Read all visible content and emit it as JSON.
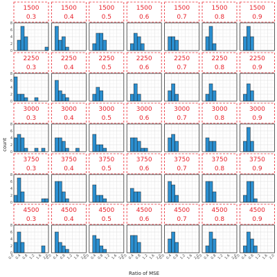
{
  "chart_data": {
    "type": "bar",
    "xlabel": "Ratio of MSE",
    "ylabel": "count",
    "xlim": [
      0,
      2.0
    ],
    "ylim": [
      0,
      8
    ],
    "x_ticks": [
      "0.0",
      "0.4",
      "0.8",
      "1.2",
      "1.6",
      "2.0"
    ],
    "y_ticks": [
      "0",
      "2",
      "4",
      "6",
      "8"
    ],
    "grid": true,
    "bin_width": 0.2,
    "bar_color": "#2b8fd0",
    "strip_color": "#e8222b",
    "rows": [
      "1500",
      "2250",
      "3000",
      "3750",
      "4500"
    ],
    "cols": [
      "0.3",
      "0.4",
      "0.5",
      "0.6",
      "0.7",
      "0.8",
      "0.9"
    ],
    "panels": [
      [
        {
          "bins": [
            0.2,
            0.4,
            0.6,
            1.8
          ],
          "counts": [
            3,
            7,
            4,
            1
          ]
        },
        {
          "bins": [
            0.2,
            0.4,
            0.6,
            0.8
          ],
          "counts": [
            7,
            3,
            4,
            1
          ]
        },
        {
          "bins": [
            0.2,
            0.4,
            0.6,
            0.8
          ],
          "counts": [
            2,
            5,
            5,
            3
          ]
        },
        {
          "bins": [
            0.2,
            0.4,
            0.6,
            0.8
          ],
          "counts": [
            2,
            5,
            4,
            2
          ]
        },
        {
          "bins": [
            0.2,
            0.4,
            0.6
          ],
          "counts": [
            4,
            4,
            3
          ]
        },
        {
          "bins": [
            0.2,
            0.4,
            0.6
          ],
          "counts": [
            4,
            7,
            2
          ]
        },
        {
          "bins": [
            0.2,
            0.4,
            0.6
          ],
          "counts": [
            4,
            7,
            4
          ]
        }
      ],
      [
        {
          "bins": [
            0.0,
            0.2,
            0.4,
            0.6,
            1.2
          ],
          "counts": [
            7,
            2,
            2,
            1,
            1
          ]
        },
        {
          "bins": [
            0.2,
            0.4,
            0.6,
            0.8
          ],
          "counts": [
            6,
            3,
            2,
            1
          ]
        },
        {
          "bins": [
            0.2,
            0.4,
            0.6
          ],
          "counts": [
            2,
            4,
            3
          ]
        },
        {
          "bins": [
            0.2,
            0.4,
            0.6
          ],
          "counts": [
            2,
            5,
            2
          ]
        },
        {
          "bins": [
            0.2,
            0.4,
            0.6
          ],
          "counts": [
            3,
            5,
            2
          ]
        },
        {
          "bins": [
            0.2,
            0.4,
            0.6
          ],
          "counts": [
            2,
            5,
            3
          ]
        },
        {
          "bins": [
            0.2,
            0.4,
            0.6
          ],
          "counts": [
            2,
            5,
            3
          ]
        }
      ],
      [
        {
          "bins": [
            0.0,
            0.2,
            0.4,
            0.6,
            1.2,
            1.6
          ],
          "counts": [
            4,
            5,
            4,
            1,
            1,
            1
          ]
        },
        {
          "bins": [
            0.2,
            0.4,
            0.6,
            0.8,
            1.4
          ],
          "counts": [
            4,
            4,
            3,
            1,
            1
          ]
        },
        {
          "bins": [
            0.2,
            0.4,
            0.6,
            0.8
          ],
          "counts": [
            5,
            2,
            2,
            1
          ]
        },
        {
          "bins": [
            0.2,
            0.4,
            0.6,
            0.8,
            1.0
          ],
          "counts": [
            4,
            4,
            3,
            1,
            1
          ]
        },
        {
          "bins": [
            0.2,
            0.4,
            0.6
          ],
          "counts": [
            4,
            5,
            3
          ]
        },
        {
          "bins": [
            0.2,
            0.4,
            0.6
          ],
          "counts": [
            4,
            3,
            3
          ]
        },
        {
          "bins": [
            0.2,
            0.4,
            0.6
          ],
          "counts": [
            3,
            7,
            3
          ]
        }
      ],
      [
        {
          "bins": [
            0.0,
            0.2,
            0.4,
            1.6,
            1.8
          ],
          "counts": [
            2,
            7,
            3,
            1,
            1
          ]
        },
        {
          "bins": [
            0.2,
            0.4,
            0.6,
            0.8
          ],
          "counts": [
            6,
            6,
            3,
            1
          ]
        },
        {
          "bins": [
            0.2,
            0.4,
            0.6,
            0.8
          ],
          "counts": [
            5,
            2,
            2,
            1
          ]
        },
        {
          "bins": [
            0.2,
            0.4,
            0.6
          ],
          "counts": [
            4,
            3,
            3
          ]
        },
        {
          "bins": [
            0.2,
            0.4,
            0.6
          ],
          "counts": [
            6,
            5,
            2
          ]
        },
        {
          "bins": [
            0.2,
            0.4,
            0.6
          ],
          "counts": [
            6,
            6,
            3
          ]
        },
        {
          "bins": [
            0.2,
            0.4,
            0.6,
            0.8
          ],
          "counts": [
            2,
            6,
            6,
            1
          ]
        }
      ],
      [
        {
          "bins": [
            0.0,
            0.2,
            0.4,
            1.6
          ],
          "counts": [
            3,
            6,
            3,
            2
          ]
        },
        {
          "bins": [
            0.2,
            0.4,
            0.6,
            0.8
          ],
          "counts": [
            6,
            3,
            2,
            1
          ]
        },
        {
          "bins": [
            0.2,
            0.4,
            0.6,
            0.8
          ],
          "counts": [
            5,
            4,
            2,
            1
          ]
        },
        {
          "bins": [
            0.2,
            0.4,
            0.6
          ],
          "counts": [
            5,
            5,
            3
          ]
        },
        {
          "bins": [
            0.2,
            0.4,
            0.6
          ],
          "counts": [
            4,
            6,
            3
          ]
        },
        {
          "bins": [
            0.2,
            0.4,
            0.6
          ],
          "counts": [
            2,
            6,
            4
          ]
        },
        {
          "bins": [
            0.2,
            0.4,
            0.6,
            0.8
          ],
          "counts": [
            2,
            6,
            4,
            2
          ]
        }
      ]
    ]
  }
}
